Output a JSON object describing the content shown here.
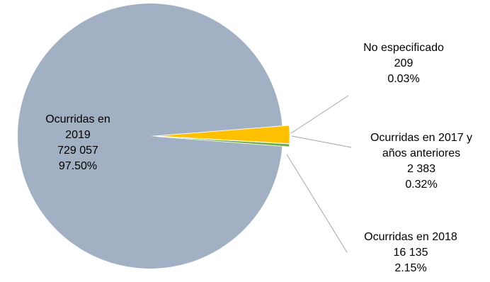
{
  "chart_data": {
    "type": "pie",
    "title": "",
    "slices": [
      {
        "label": "Ocurridas en 2019",
        "value": 729057,
        "value_text": "729 057",
        "percent": "97.50%",
        "color": "#a2b0c3"
      },
      {
        "label": "Ocurridas en 2018",
        "value": 16135,
        "value_text": "16 135",
        "percent": "2.15%",
        "color": "#ffc000"
      },
      {
        "label": "Ocurridas en 2017 y años anteriores",
        "value": 2383,
        "value_text": "2 383",
        "percent": "0.32%",
        "color": "#70ad47"
      },
      {
        "label": "No especificado",
        "value": 209,
        "value_text": "209",
        "percent": "0.03%",
        "color": "#000000"
      }
    ],
    "label_text": {
      "s2019": [
        "Ocurridas en",
        "2019"
      ],
      "s2018": [
        "Ocurridas en 2018"
      ],
      "s2017": [
        "Ocurridas en 2017 y",
        "años anteriores"
      ],
      "sne": [
        "No especificado"
      ]
    },
    "leader_color": "#a6a6a6"
  }
}
